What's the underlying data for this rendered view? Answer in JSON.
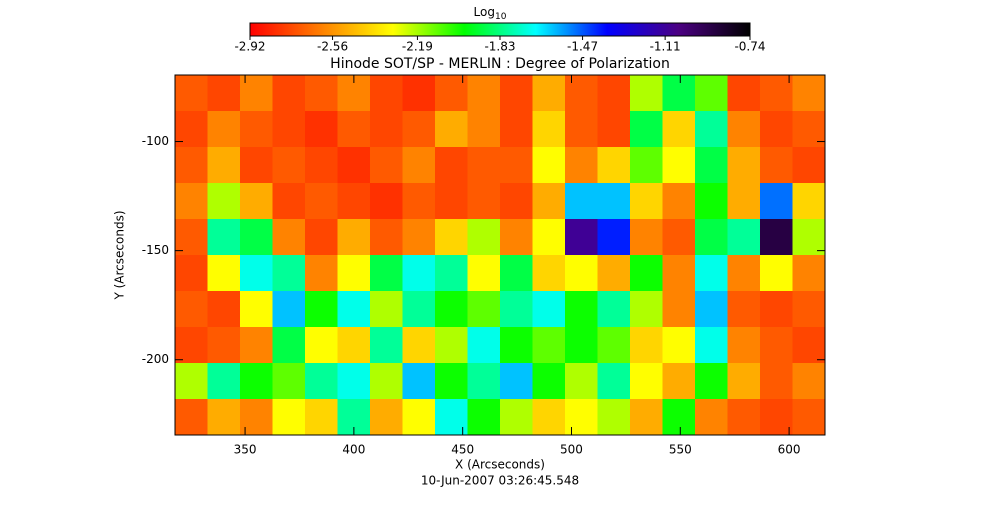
{
  "chart_data": {
    "type": "heatmap",
    "title": "Hinode SOT/SP - MERLIN : Degree of Polarization",
    "x_label": "X (Arcseconds)",
    "y_label": "Y (Arcseconds)",
    "footer": "10-Jun-2007 03:26:45.548",
    "colorbar_label": "Log",
    "colorbar_label_sub": "10",
    "clim": [
      -2.92,
      -0.74
    ],
    "colorbar_ticks": [
      -2.92,
      -2.56,
      -2.19,
      -1.83,
      -1.47,
      -1.11,
      -0.74
    ],
    "colorscale": [
      "#ff0000",
      "#ff8000",
      "#ffff00",
      "#00ff00",
      "#00ffff",
      "#0000ff",
      "#4b0082",
      "#000000"
    ],
    "xlim": [
      317.8,
      616.5
    ],
    "ylim": [
      -234.5,
      -69.5
    ],
    "xticks": [
      350,
      400,
      450,
      500,
      550,
      600
    ],
    "yticks": [
      -100,
      -150,
      -200
    ],
    "values": [
      [
        -2.7,
        -2.75,
        -2.6,
        -2.75,
        -2.7,
        -2.6,
        -2.75,
        -2.8,
        -2.7,
        -2.6,
        -2.75,
        -2.5,
        -2.7,
        -2.75,
        -2.2,
        -1.9,
        -2.1,
        -2.75,
        -2.7,
        -2.6
      ],
      [
        -2.75,
        -2.6,
        -2.7,
        -2.75,
        -2.8,
        -2.7,
        -2.75,
        -2.7,
        -2.5,
        -2.6,
        -2.75,
        -2.4,
        -2.7,
        -2.75,
        -1.9,
        -2.4,
        -1.8,
        -2.6,
        -2.75,
        -2.7
      ],
      [
        -2.7,
        -2.5,
        -2.75,
        -2.7,
        -2.75,
        -2.8,
        -2.7,
        -2.6,
        -2.75,
        -2.7,
        -2.7,
        -2.3,
        -2.6,
        -2.4,
        -2.1,
        -2.3,
        -1.9,
        -2.5,
        -2.7,
        -2.75
      ],
      [
        -2.6,
        -2.2,
        -2.5,
        -2.75,
        -2.7,
        -2.75,
        -2.8,
        -2.7,
        -2.75,
        -2.7,
        -2.75,
        -2.5,
        -1.6,
        -1.6,
        -2.4,
        -2.6,
        -2.0,
        -2.5,
        -1.5,
        -2.4
      ],
      [
        -2.7,
        -1.8,
        -1.9,
        -2.6,
        -2.75,
        -2.5,
        -2.7,
        -2.6,
        -2.4,
        -2.2,
        -2.6,
        -2.3,
        -1.1,
        -1.4,
        -2.6,
        -2.7,
        -1.9,
        -1.8,
        -0.9,
        -2.2
      ],
      [
        -2.75,
        -2.3,
        -1.7,
        -1.8,
        -2.6,
        -2.3,
        -1.9,
        -1.7,
        -1.8,
        -2.3,
        -1.9,
        -2.4,
        -2.3,
        -2.5,
        -2.0,
        -2.6,
        -1.7,
        -2.6,
        -2.3,
        -2.6
      ],
      [
        -2.7,
        -2.75,
        -2.3,
        -1.6,
        -2.0,
        -1.7,
        -2.2,
        -1.8,
        -2.0,
        -2.1,
        -1.8,
        -1.7,
        -2.0,
        -1.8,
        -2.2,
        -2.6,
        -1.6,
        -2.7,
        -2.75,
        -2.7
      ],
      [
        -2.75,
        -2.7,
        -2.6,
        -1.9,
        -2.3,
        -2.4,
        -1.8,
        -2.4,
        -2.2,
        -1.7,
        -2.0,
        -2.1,
        -2.0,
        -2.1,
        -2.4,
        -2.3,
        -1.7,
        -2.6,
        -2.7,
        -2.75
      ],
      [
        -2.2,
        -1.8,
        -2.0,
        -2.1,
        -1.8,
        -1.7,
        -2.2,
        -1.6,
        -2.0,
        -1.8,
        -1.6,
        -2.0,
        -2.2,
        -1.8,
        -2.3,
        -2.5,
        -2.0,
        -2.5,
        -2.7,
        -2.6
      ],
      [
        -2.7,
        -2.5,
        -2.6,
        -2.3,
        -2.4,
        -1.8,
        -2.5,
        -2.3,
        -1.7,
        -2.0,
        -2.2,
        -2.4,
        -2.3,
        -2.2,
        -2.5,
        -2.0,
        -2.6,
        -2.7,
        -2.75,
        -2.7
      ]
    ]
  }
}
